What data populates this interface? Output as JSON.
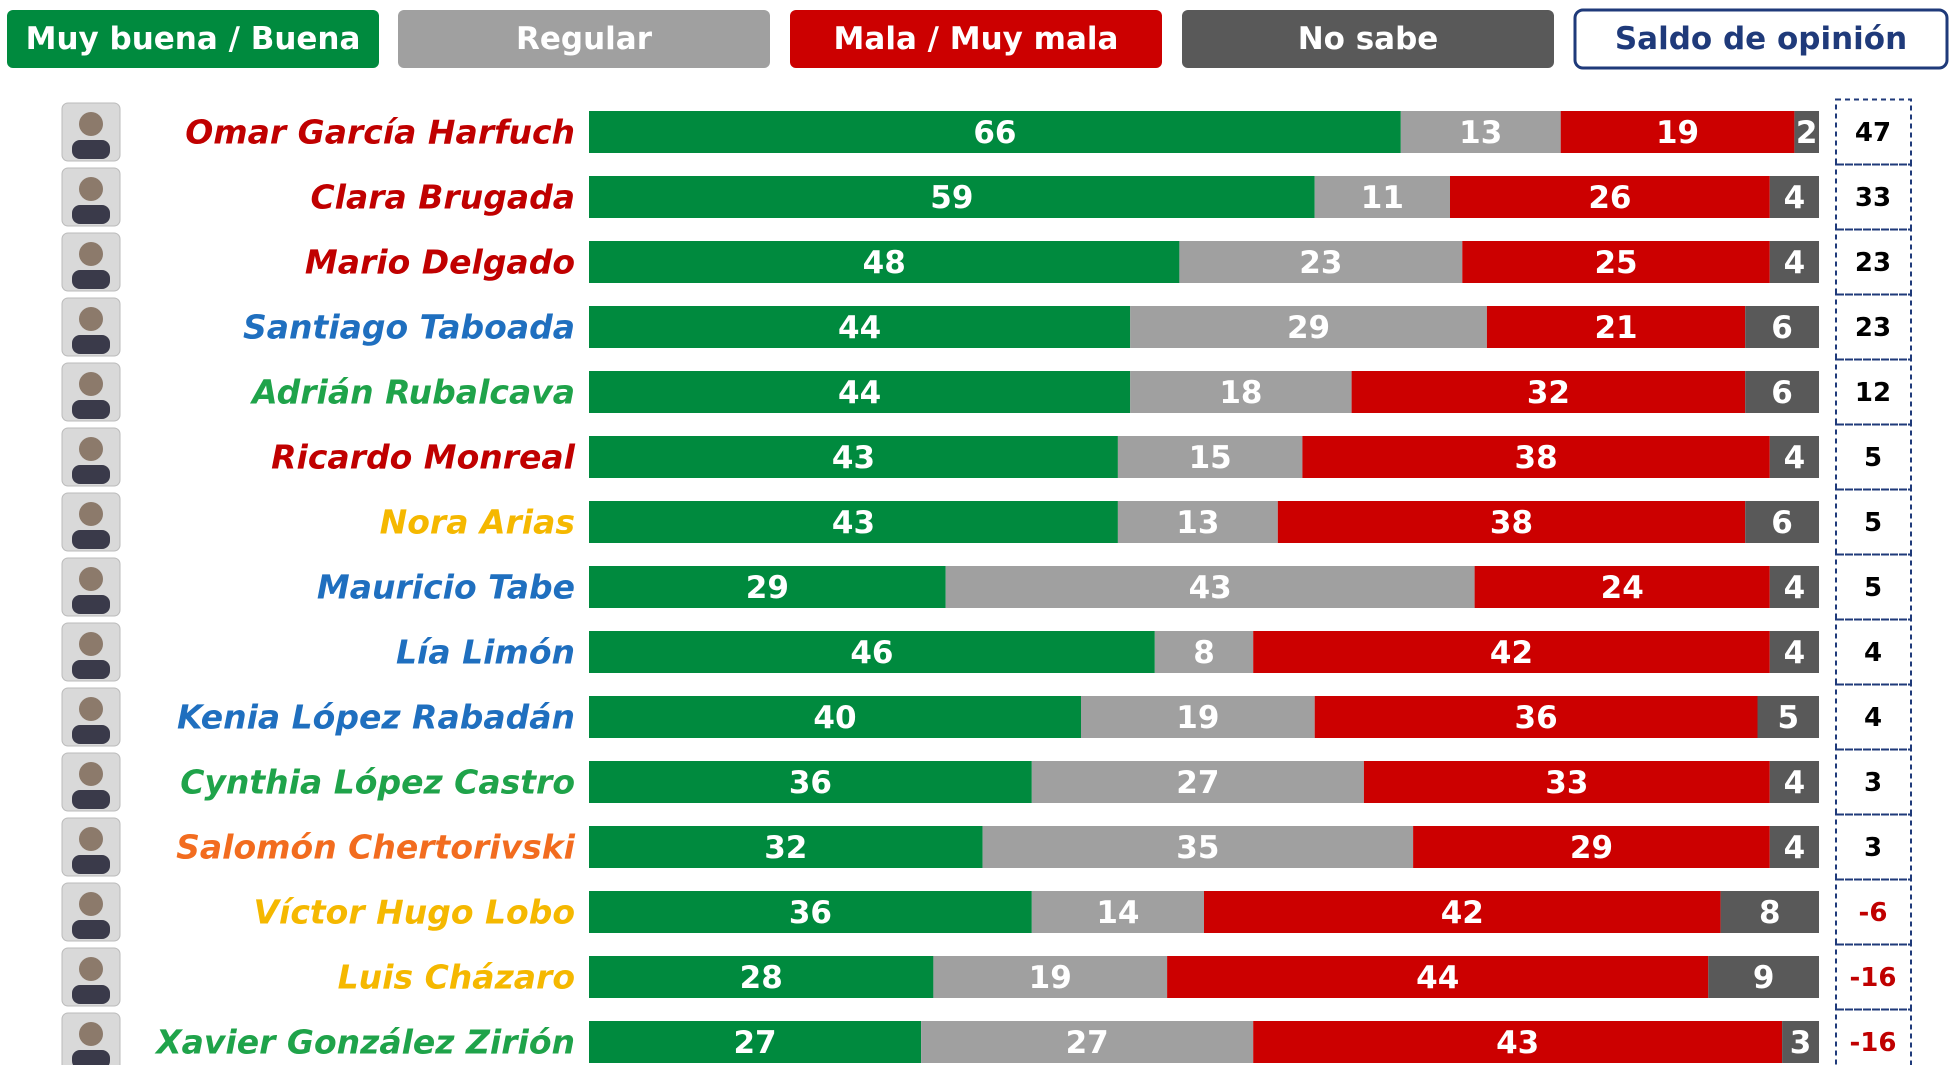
{
  "chart_data": {
    "type": "stacked_bar",
    "categories": [
      "Omar García Harfuch",
      "Clara Brugada",
      "Mario Delgado",
      "Santiago Taboada",
      "Adrián Rubalcava",
      "Ricardo Monreal",
      "Nora Arias",
      "Mauricio Tabe",
      "Lía Limón",
      "Kenia López Rabadán",
      "Cynthia López Castro",
      "Salomón Chertorivski",
      "Víctor Hugo Lobo",
      "Luis Cházaro",
      "Xavier González Zirión"
    ],
    "category_colors": [
      "#c00000",
      "#c00000",
      "#c00000",
      "#1f6fbf",
      "#1fa34a",
      "#c00000",
      "#f5b800",
      "#1f6fbf",
      "#1f6fbf",
      "#1f6fbf",
      "#1fa34a",
      "#f26c1f",
      "#f5b800",
      "#f5b800",
      "#1fa34a"
    ],
    "series": [
      {
        "name": "Muy buena / Buena",
        "color": "#008a3e",
        "values": [
          66,
          59,
          48,
          44,
          44,
          43,
          43,
          29,
          46,
          40,
          36,
          32,
          36,
          28,
          27
        ]
      },
      {
        "name": "Regular",
        "color": "#a0a0a0",
        "values": [
          13,
          11,
          23,
          29,
          18,
          15,
          13,
          43,
          8,
          19,
          27,
          35,
          14,
          19,
          27
        ]
      },
      {
        "name": "Mala / Muy mala",
        "color": "#cc0000",
        "values": [
          19,
          26,
          25,
          21,
          32,
          38,
          38,
          24,
          42,
          36,
          33,
          29,
          42,
          44,
          43
        ]
      },
      {
        "name": "No sabe",
        "color": "#595959",
        "values": [
          2,
          4,
          4,
          6,
          6,
          4,
          6,
          4,
          4,
          5,
          4,
          4,
          8,
          9,
          3
        ]
      }
    ],
    "saldo": {
      "name": "Saldo de opinión",
      "color": "#000000",
      "negative_color": "#c00000",
      "border_color": "#1f3a7a",
      "values": [
        47,
        33,
        23,
        23,
        12,
        5,
        5,
        5,
        4,
        4,
        3,
        3,
        -6,
        -16,
        -16
      ]
    }
  }
}
